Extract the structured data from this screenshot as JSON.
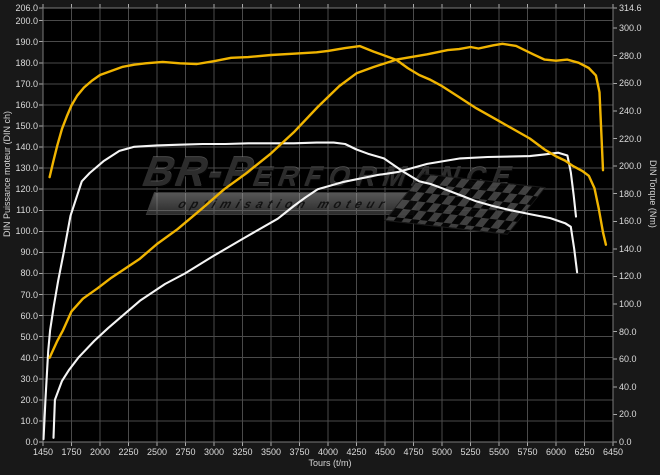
{
  "chart_data": {
    "type": "line",
    "x_axis": {
      "label": "Tours (t/m)",
      "ticks": [
        1450,
        1750,
        2000,
        2250,
        2500,
        2750,
        3000,
        3250,
        3500,
        3750,
        4000,
        4250,
        4500,
        4750,
        5000,
        5250,
        5500,
        5750,
        6000,
        6250,
        6450
      ]
    },
    "y_left": {
      "label": "DIN Puissance moteur (DIN ch)",
      "max": 206.0,
      "ticks": [
        206,
        200,
        190,
        180,
        170,
        160,
        150,
        140,
        130,
        120,
        110,
        100,
        90,
        80,
        70,
        60,
        50,
        40,
        30,
        20,
        10,
        0
      ]
    },
    "y_right": {
      "label": "DIN Torque (Nm)",
      "max": 314.6,
      "ticks": [
        314.6,
        300,
        280,
        260,
        240,
        220,
        200,
        180,
        160,
        140,
        120,
        100,
        80,
        60,
        40,
        20,
        0
      ]
    },
    "series": [
      {
        "name": "torque-stock",
        "axis": "right",
        "color": "#f5f5f5",
        "width": 2.1,
        "points": [
          [
            1455,
            2
          ],
          [
            1465,
            15
          ],
          [
            1475,
            30
          ],
          [
            1490,
            48
          ],
          [
            1505,
            66
          ],
          [
            1525,
            81
          ],
          [
            1565,
            99
          ],
          [
            1610,
            117
          ],
          [
            1670,
            138
          ],
          [
            1740,
            164
          ],
          [
            1840,
            189
          ],
          [
            1910,
            195
          ],
          [
            2030,
            203.5
          ],
          [
            2170,
            211
          ],
          [
            2300,
            214
          ],
          [
            2500,
            215
          ],
          [
            2700,
            215.5
          ],
          [
            2900,
            216
          ],
          [
            3100,
            216
          ],
          [
            3300,
            216.5
          ],
          [
            3500,
            216.5
          ],
          [
            3700,
            216.5
          ],
          [
            3900,
            217
          ],
          [
            4050,
            217
          ],
          [
            4150,
            216
          ],
          [
            4250,
            212
          ],
          [
            4350,
            209
          ],
          [
            4490,
            205.6
          ],
          [
            4660,
            196
          ],
          [
            4800,
            189
          ],
          [
            4900,
            187
          ],
          [
            5000,
            184
          ],
          [
            5160,
            179
          ],
          [
            5300,
            174.5
          ],
          [
            5450,
            171
          ],
          [
            5600,
            168
          ],
          [
            5770,
            165.2
          ],
          [
            5950,
            162.3
          ],
          [
            6080,
            158.6
          ],
          [
            6130,
            156
          ],
          [
            6160,
            140
          ],
          [
            6185,
            123
          ]
        ]
      },
      {
        "name": "power-stock",
        "axis": "left",
        "color": "#f5f5f5",
        "width": 2.1,
        "points": [
          [
            1560,
            2
          ],
          [
            1575,
            20
          ],
          [
            1650,
            29
          ],
          [
            1720,
            34
          ],
          [
            1810,
            40
          ],
          [
            1950,
            48
          ],
          [
            2070,
            54
          ],
          [
            2350,
            67
          ],
          [
            2570,
            75
          ],
          [
            2745,
            80
          ],
          [
            2985,
            88
          ],
          [
            3270,
            97
          ],
          [
            3560,
            106
          ],
          [
            3700,
            112
          ],
          [
            3800,
            116
          ],
          [
            3910,
            120
          ],
          [
            4140,
            123.5
          ],
          [
            4430,
            126.7
          ],
          [
            4610,
            128.1
          ],
          [
            4870,
            132
          ],
          [
            5160,
            134.6
          ],
          [
            5400,
            135.3
          ],
          [
            5770,
            135.7
          ],
          [
            5900,
            136.5
          ],
          [
            6020,
            137.3
          ],
          [
            6100,
            136
          ],
          [
            6130,
            128
          ],
          [
            6155,
            117
          ],
          [
            6175,
            107
          ]
        ]
      },
      {
        "name": "torque-tuned",
        "axis": "right",
        "color": "#f0b400",
        "width": 2.4,
        "points": [
          [
            1520,
            192
          ],
          [
            1560,
            204
          ],
          [
            1600,
            215
          ],
          [
            1650,
            227
          ],
          [
            1700,
            236
          ],
          [
            1750,
            244
          ],
          [
            1800,
            251
          ],
          [
            1860,
            257
          ],
          [
            1930,
            262
          ],
          [
            2000,
            266
          ],
          [
            2100,
            269
          ],
          [
            2200,
            272
          ],
          [
            2300,
            273.5
          ],
          [
            2400,
            274.5
          ],
          [
            2550,
            275.5
          ],
          [
            2700,
            274.5
          ],
          [
            2850,
            274
          ],
          [
            3000,
            276
          ],
          [
            3150,
            278.5
          ],
          [
            3300,
            279
          ],
          [
            3500,
            280.5
          ],
          [
            3700,
            281.5
          ],
          [
            3900,
            282.5
          ],
          [
            4000,
            283.5
          ],
          [
            4150,
            285.5
          ],
          [
            4280,
            287
          ],
          [
            4400,
            283
          ],
          [
            4500,
            280
          ],
          [
            4600,
            277
          ],
          [
            4700,
            271
          ],
          [
            4800,
            266
          ],
          [
            4900,
            262.5
          ],
          [
            5000,
            258
          ],
          [
            5150,
            250
          ],
          [
            5300,
            242
          ],
          [
            5450,
            235
          ],
          [
            5600,
            228
          ],
          [
            5770,
            220
          ],
          [
            5900,
            212
          ],
          [
            6000,
            207
          ],
          [
            6080,
            204
          ],
          [
            6150,
            200
          ],
          [
            6230,
            196.5
          ],
          [
            6280,
            193
          ],
          [
            6320,
            184
          ],
          [
            6350,
            169
          ],
          [
            6380,
            152
          ],
          [
            6400,
            143
          ]
        ]
      },
      {
        "name": "power-tuned",
        "axis": "left",
        "color": "#f0b400",
        "width": 2.4,
        "points": [
          [
            1520,
            40
          ],
          [
            1600,
            48
          ],
          [
            1660,
            53
          ],
          [
            1750,
            62
          ],
          [
            1850,
            68
          ],
          [
            1980,
            73
          ],
          [
            2100,
            78
          ],
          [
            2350,
            87
          ],
          [
            2500,
            94
          ],
          [
            2680,
            101
          ],
          [
            2900,
            111
          ],
          [
            3090,
            120
          ],
          [
            3270,
            127
          ],
          [
            3500,
            137
          ],
          [
            3700,
            147
          ],
          [
            3910,
            159
          ],
          [
            4100,
            169
          ],
          [
            4250,
            175
          ],
          [
            4400,
            178
          ],
          [
            4600,
            181.5
          ],
          [
            4870,
            184
          ],
          [
            5050,
            186
          ],
          [
            5150,
            186.5
          ],
          [
            5250,
            187.5
          ],
          [
            5320,
            186.8
          ],
          [
            5450,
            188.3
          ],
          [
            5530,
            189
          ],
          [
            5650,
            188
          ],
          [
            5800,
            184
          ],
          [
            5900,
            181.5
          ],
          [
            6000,
            181
          ],
          [
            6100,
            181.5
          ],
          [
            6200,
            180
          ],
          [
            6280,
            177.5
          ],
          [
            6330,
            174
          ],
          [
            6355,
            166
          ],
          [
            6380,
            129
          ]
        ]
      }
    ],
    "layout": {
      "grid": true,
      "legend": false,
      "plot_bg": "#000000",
      "grid_color": "#4a4a4a",
      "border_color": "#7a7a7a",
      "tick_text_color": "#dcdcdc"
    }
  },
  "watermark": {
    "brand_main": "BR-P",
    "brand_rest": "ERFORMANCE",
    "tagline": "optimisation  moteur"
  }
}
